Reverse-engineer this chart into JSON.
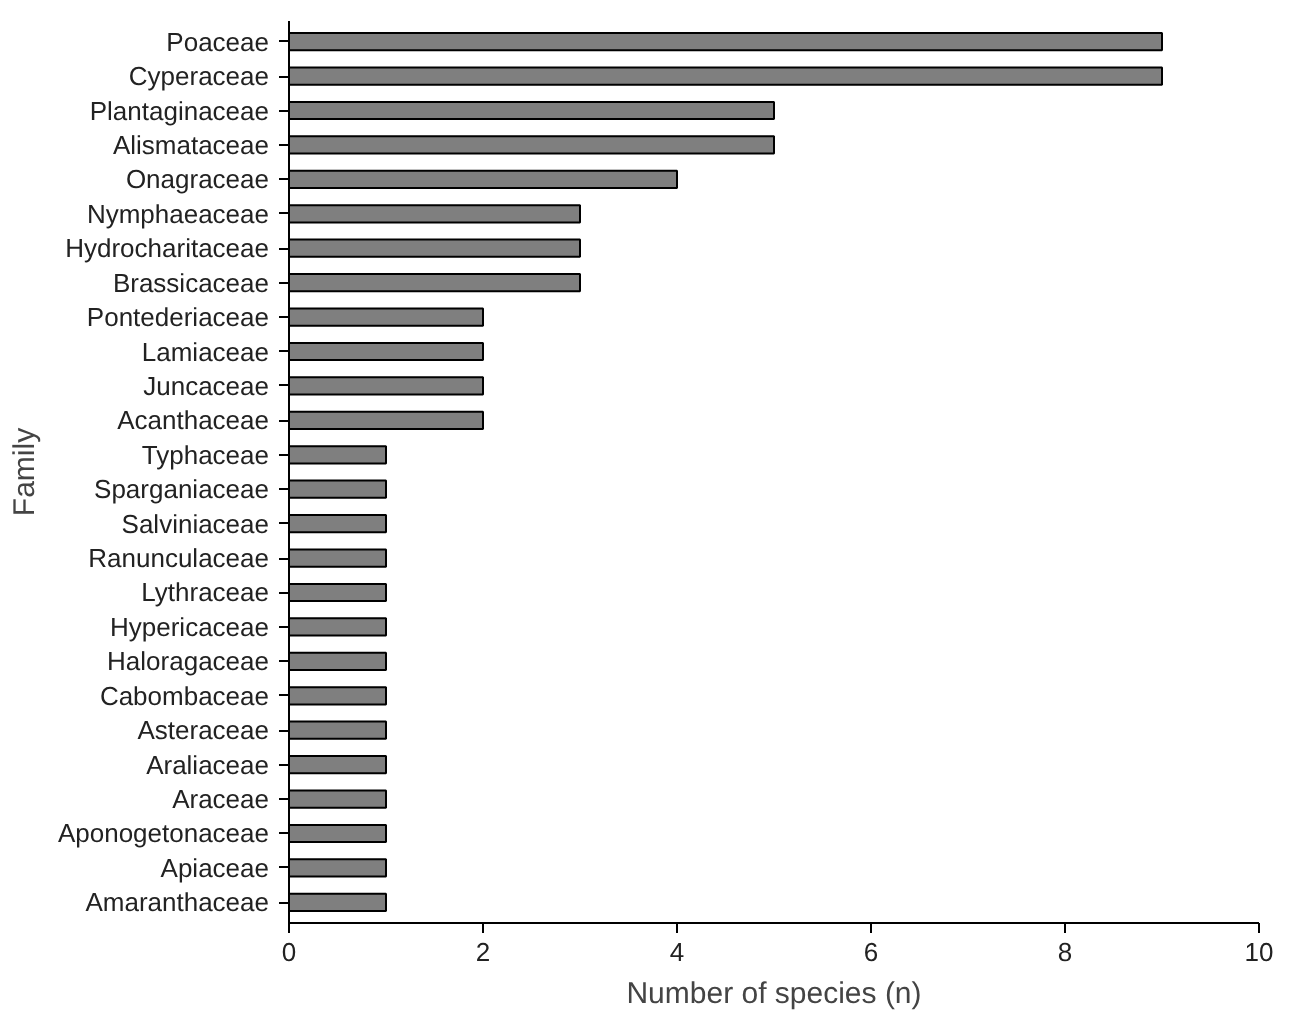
{
  "chart_data": {
    "type": "bar",
    "orientation": "horizontal",
    "xlabel": "Number of species (n)",
    "ylabel": "Family",
    "categories": [
      "Poaceae",
      "Cyperaceae",
      "Plantaginaceae",
      "Alismataceae",
      "Onagraceae",
      "Nymphaeaceae",
      "Hydrocharitaceae",
      "Brassicaceae",
      "Pontederiaceae",
      "Lamiaceae",
      "Juncaceae",
      "Acanthaceae",
      "Typhaceae",
      "Sparganiaceae",
      "Salviniaceae",
      "Ranunculaceae",
      "Lythraceae",
      "Hypericaceae",
      "Haloragaceae",
      "Cabombaceae",
      "Asteraceae",
      "Araliaceae",
      "Araceae",
      "Aponogetonaceae",
      "Apiaceae",
      "Amaranthaceae"
    ],
    "values": [
      9,
      9,
      5,
      5,
      4,
      3,
      3,
      3,
      2,
      2,
      2,
      2,
      1,
      1,
      1,
      1,
      1,
      1,
      1,
      1,
      1,
      1,
      1,
      1,
      1,
      1
    ],
    "color": "#7f7f7f",
    "xlim": [
      0,
      10
    ],
    "xticks": [
      0,
      2,
      4,
      6,
      8,
      10
    ],
    "grid": false
  }
}
